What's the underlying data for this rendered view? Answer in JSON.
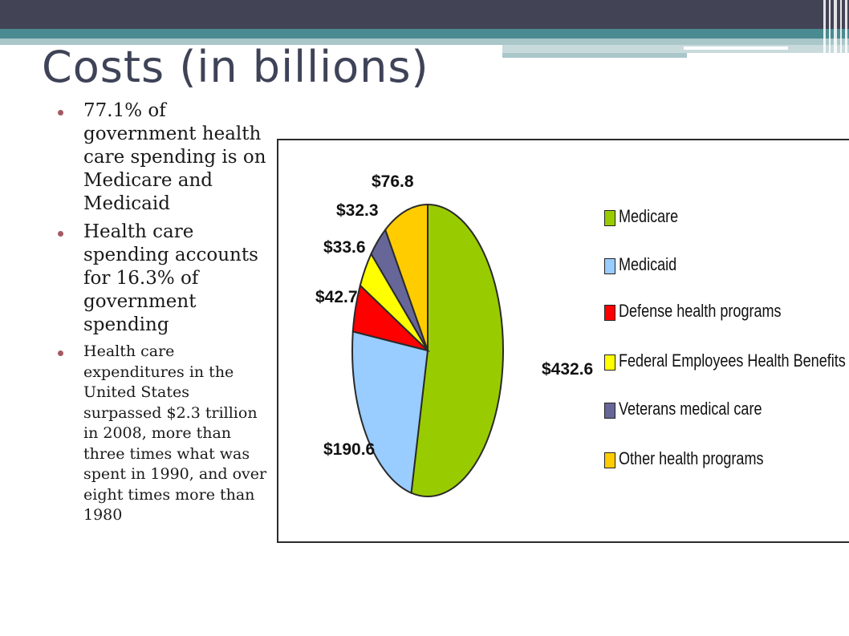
{
  "title": "Costs (in billions)",
  "bullets": [
    "77.1% of government health care spending is on Medicare and Medicaid",
    "Health care spending accounts for 16.3% of government spending",
    "Health care expenditures in the United States surpassed $2.3 trillion in 2008, more than three times what was spent in 1990, and over eight times more than 1980"
  ],
  "colors": {
    "accent_dark": "#434356",
    "accent_teal": "#4a8a91",
    "title": "#3f4357",
    "bullet_dot": "#a55a63"
  },
  "chart_data": {
    "type": "pie",
    "title": "",
    "legend_position": "right",
    "categories": [
      "Medicare",
      "Medicaid",
      "Defense health programs",
      "Federal Employees Health Benefits",
      "Veterans medical care",
      "Other health programs"
    ],
    "values": [
      432.6,
      190.6,
      42.7,
      33.6,
      32.3,
      76.8
    ],
    "labels": [
      "$432.6",
      "$190.6",
      "$42.7",
      "$33.6",
      "$32.3",
      "$76.8"
    ],
    "colors": [
      "#99cc00",
      "#99ccff",
      "#ff0000",
      "#ffff00",
      "#666699",
      "#ffcc00"
    ]
  }
}
